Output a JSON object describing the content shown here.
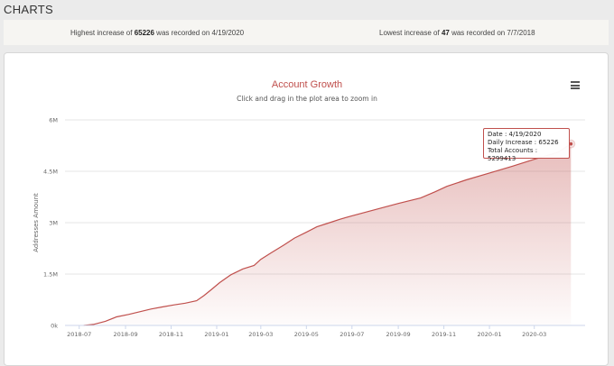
{
  "header": {
    "title": "CHARTS"
  },
  "stats": {
    "high_prefix": "Highest increase of ",
    "high_value": "65226",
    "high_suffix": " was recorded on 4/19/2020",
    "low_prefix": "Lowest increase of ",
    "low_value": "47",
    "low_suffix": " was recorded on 7/7/2018"
  },
  "chart_data": {
    "type": "area",
    "title": "Account Growth",
    "subtitle": "Click and drag in the plot area to zoom in",
    "ylabel": "Addresses Amount",
    "xlabel": "",
    "ylim": [
      0,
      6000000
    ],
    "yticks": [
      {
        "value": 0,
        "label": "0k"
      },
      {
        "value": 1500000,
        "label": "1.5M"
      },
      {
        "value": 3000000,
        "label": "3M"
      },
      {
        "value": 4500000,
        "label": "4.5M"
      },
      {
        "value": 6000000,
        "label": "6M"
      }
    ],
    "x_range": [
      "2018-06-12",
      "2020-05-08"
    ],
    "xticks": [
      "2018-07",
      "2018-09",
      "2018-11",
      "2019-01",
      "2019-03",
      "2019-05",
      "2019-07",
      "2019-09",
      "2019-11",
      "2020-01",
      "2020-03"
    ],
    "grid": true,
    "legend": "none",
    "color": "#c0504d",
    "series": [
      {
        "x": [
          "2018-07-07",
          "2018-07-20",
          "2018-08-05",
          "2018-08-20",
          "2018-09-05",
          "2018-09-20",
          "2018-10-05",
          "2018-10-20",
          "2018-11-05",
          "2018-11-20",
          "2018-12-05",
          "2018-12-15",
          "2018-12-25",
          "2019-01-05",
          "2019-01-20",
          "2019-02-05",
          "2019-02-20",
          "2019-03-01",
          "2019-03-15",
          "2019-04-01",
          "2019-04-15",
          "2019-05-01",
          "2019-05-15",
          "2019-06-01",
          "2019-06-15",
          "2019-07-01",
          "2019-08-01",
          "2019-09-01",
          "2019-10-01",
          "2019-10-20",
          "2019-11-05",
          "2019-12-01",
          "2020-01-01",
          "2020-02-01",
          "2020-03-01",
          "2020-04-01",
          "2020-04-19"
        ],
        "values": [
          0,
          30000,
          120000,
          250000,
          320000,
          400000,
          480000,
          540000,
          600000,
          650000,
          720000,
          870000,
          1050000,
          1250000,
          1480000,
          1650000,
          1750000,
          1930000,
          2120000,
          2350000,
          2550000,
          2720000,
          2880000,
          3000000,
          3100000,
          3200000,
          3380000,
          3560000,
          3720000,
          3900000,
          4060000,
          4250000,
          4450000,
          4650000,
          4850000,
          5050000,
          5299413
        ]
      }
    ]
  },
  "tooltip": {
    "date_label": "Date : 4/19/2020",
    "increase_label": "Daily Increase : 65226",
    "total_label": "Total Accounts : 5299413"
  }
}
